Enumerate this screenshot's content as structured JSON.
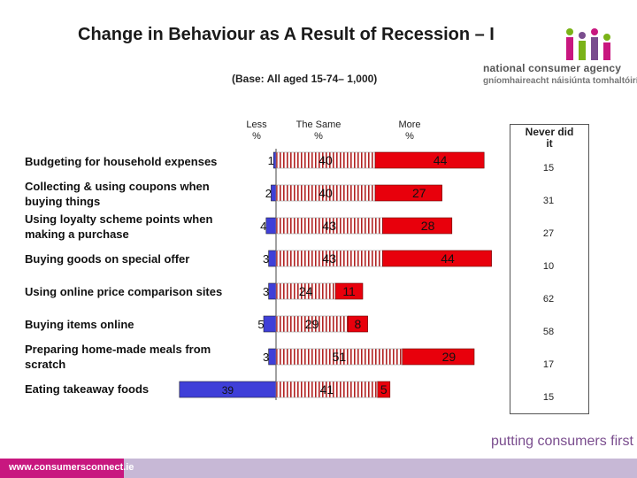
{
  "title": "Change in Behaviour as A Result of Recession – I",
  "base": "(Base: All aged 15-74– 1,000)",
  "logo": {
    "name": "national consumer agency",
    "irish": "gníomhaireacht náisiúnta tomhaltóirí"
  },
  "footer": {
    "url": "www.consumersconnect.ie",
    "tagline": "putting consumers first"
  },
  "colors": {
    "less": "#3f3fd8",
    "same_stripe": "#b22222",
    "more": "#e8000c",
    "logo_pink": "#c8177f",
    "logo_green": "#7ab317",
    "logo_purple": "#7a4d8e"
  },
  "chart_data": {
    "type": "bar",
    "columns": [
      {
        "label": "Less\n%"
      },
      {
        "label": "The Same\n%"
      },
      {
        "label": "More\n%"
      },
      {
        "label": "Never did\nit"
      }
    ],
    "categories": [
      "Budgeting for household expenses",
      "Collecting & using coupons when buying things",
      "Using loyalty scheme points when making a purchase",
      "Buying goods on special offer",
      "Using online price comparison sites",
      "Buying items online",
      "Preparing home-made meals from scratch",
      "Eating takeaway foods"
    ],
    "series": [
      {
        "name": "Less",
        "values": [
          1,
          2,
          4,
          3,
          3,
          5,
          3,
          39
        ]
      },
      {
        "name": "The Same",
        "values": [
          40,
          40,
          43,
          43,
          24,
          29,
          51,
          41
        ]
      },
      {
        "name": "More",
        "values": [
          44,
          27,
          28,
          44,
          11,
          8,
          29,
          5
        ]
      },
      {
        "name": "Never did it",
        "values": [
          15,
          31,
          27,
          10,
          62,
          58,
          17,
          15
        ]
      }
    ]
  }
}
